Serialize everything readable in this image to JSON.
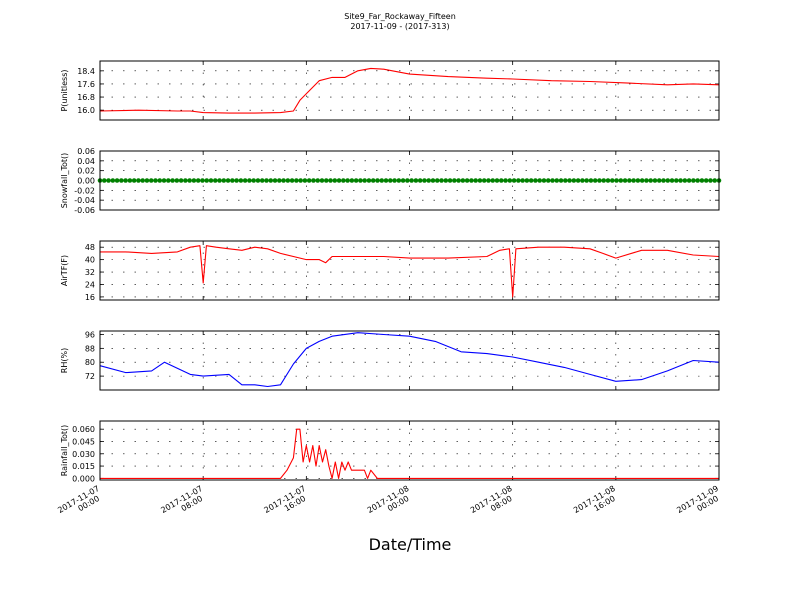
{
  "figure": {
    "title": "Site9_Far_Rockaway_Fifteen",
    "subtitle": "2017-11-09 - (2017-313)",
    "xlabel": "Date/Time",
    "x_ticks": [
      {
        "l1": "2017-11-07",
        "l2": "00:00"
      },
      {
        "l1": "2017-11-07",
        "l2": "08:00"
      },
      {
        "l1": "2017-11-07",
        "l2": "16:00"
      },
      {
        "l1": "2017-11-08",
        "l2": "00:00"
      },
      {
        "l1": "2017-11-08",
        "l2": "08:00"
      },
      {
        "l1": "2017-11-08",
        "l2": "16:00"
      },
      {
        "l1": "2017-11-09",
        "l2": "00:00"
      }
    ]
  },
  "chart_data": [
    {
      "type": "line",
      "ylabel": "P(unitless)",
      "color": "#ff0000",
      "ylim": [
        15.4,
        19.0
      ],
      "yticks": [
        "16.0",
        "16.8",
        "17.6",
        "18.4"
      ],
      "x": [
        "2017-11-07 00:00",
        "2017-11-07 03:00",
        "2017-11-07 06:00",
        "2017-11-07 07:00",
        "2017-11-07 08:00",
        "2017-11-07 10:00",
        "2017-11-07 12:00",
        "2017-11-07 14:00",
        "2017-11-07 15:00",
        "2017-11-07 15:30",
        "2017-11-07 16:00",
        "2017-11-07 17:00",
        "2017-11-07 18:00",
        "2017-11-07 19:00",
        "2017-11-07 20:00",
        "2017-11-07 21:00",
        "2017-11-07 22:00",
        "2017-11-08 00:00",
        "2017-11-08 03:00",
        "2017-11-08 06:00",
        "2017-11-08 08:00",
        "2017-11-08 11:00",
        "2017-11-08 14:00",
        "2017-11-08 17:00",
        "2017-11-08 20:00",
        "2017-11-08 22:00",
        "2017-11-09 00:00"
      ],
      "values": [
        15.95,
        16.0,
        15.95,
        15.95,
        15.85,
        15.82,
        15.82,
        15.85,
        15.95,
        16.6,
        17.0,
        17.8,
        18.0,
        18.0,
        18.4,
        18.55,
        18.5,
        18.2,
        18.05,
        17.95,
        17.9,
        17.8,
        17.75,
        17.65,
        17.55,
        17.6,
        17.55
      ]
    },
    {
      "type": "scatter",
      "ylabel": "Snowfall_Tot()",
      "color": "#008000",
      "ylim": [
        -0.06,
        0.06
      ],
      "yticks": [
        "0.06",
        "0.04",
        "0.02",
        "0.00",
        "-0.02",
        "-0.04",
        "-0.06"
      ],
      "x": [
        "2017-11-07 00:00",
        "2017-11-09 00:00"
      ],
      "values": [
        0.0,
        0.0
      ]
    },
    {
      "type": "line",
      "ylabel": "AirTF(F)",
      "color": "#ff0000",
      "ylim": [
        14,
        52
      ],
      "yticks": [
        "48",
        "40",
        "32",
        "24",
        "16"
      ],
      "x": [
        "2017-11-07 00:00",
        "2017-11-07 02:00",
        "2017-11-07 04:00",
        "2017-11-07 06:00",
        "2017-11-07 07:00",
        "2017-11-07 07:45",
        "2017-11-07 08:00",
        "2017-11-07 08:15",
        "2017-11-07 09:00",
        "2017-11-07 10:00",
        "2017-11-07 11:00",
        "2017-11-07 12:00",
        "2017-11-07 13:00",
        "2017-11-07 14:00",
        "2017-11-07 16:00",
        "2017-11-07 17:00",
        "2017-11-07 17:30",
        "2017-11-07 18:00",
        "2017-11-07 20:00",
        "2017-11-07 22:00",
        "2017-11-08 00:00",
        "2017-11-08 03:00",
        "2017-11-08 06:00",
        "2017-11-08 07:00",
        "2017-11-08 07:45",
        "2017-11-08 08:00",
        "2017-11-08 08:15",
        "2017-11-08 10:00",
        "2017-11-08 12:00",
        "2017-11-08 14:00",
        "2017-11-08 15:00",
        "2017-11-08 16:00",
        "2017-11-08 18:00",
        "2017-11-08 20:00",
        "2017-11-08 22:00",
        "2017-11-09 00:00"
      ],
      "values": [
        45,
        45,
        44,
        45,
        48,
        49,
        25,
        49,
        48,
        47,
        46,
        48,
        47,
        44,
        40,
        40,
        38,
        42,
        42,
        42,
        41,
        41,
        42,
        46,
        47,
        16,
        47,
        48,
        48,
        47,
        44,
        41,
        46,
        46,
        43,
        42
      ]
    },
    {
      "type": "line",
      "ylabel": "RH(%)",
      "color": "#0000ff",
      "ylim": [
        64,
        98
      ],
      "yticks": [
        "96",
        "88",
        "80",
        "72"
      ],
      "x": [
        "2017-11-07 00:00",
        "2017-11-07 02:00",
        "2017-11-07 04:00",
        "2017-11-07 05:00",
        "2017-11-07 07:00",
        "2017-11-07 08:00",
        "2017-11-07 10:00",
        "2017-11-07 11:00",
        "2017-11-07 12:00",
        "2017-11-07 13:00",
        "2017-11-07 14:00",
        "2017-11-07 15:00",
        "2017-11-07 16:00",
        "2017-11-07 17:00",
        "2017-11-07 18:00",
        "2017-11-07 20:00",
        "2017-11-07 22:00",
        "2017-11-08 00:00",
        "2017-11-08 02:00",
        "2017-11-08 04:00",
        "2017-11-08 06:00",
        "2017-11-08 08:00",
        "2017-11-08 10:00",
        "2017-11-08 12:00",
        "2017-11-08 14:00",
        "2017-11-08 16:00",
        "2017-11-08 18:00",
        "2017-11-08 20:00",
        "2017-11-08 22:00",
        "2017-11-09 00:00"
      ],
      "values": [
        78,
        74,
        75,
        80,
        73,
        72,
        73,
        67,
        67,
        66,
        67,
        79,
        88,
        92,
        95,
        97,
        96,
        95,
        92,
        86,
        85,
        83,
        80,
        77,
        73,
        69,
        70,
        75,
        81,
        80
      ]
    },
    {
      "type": "line",
      "ylabel": "Rainfall_Tot()",
      "color": "#ff0000",
      "ylim": [
        -0.002,
        0.07
      ],
      "yticks": [
        "0.060",
        "0.045",
        "0.030",
        "0.015",
        "0.000"
      ],
      "x": [
        "2017-11-07 00:00",
        "2017-11-07 14:00",
        "2017-11-07 14:30",
        "2017-11-07 15:00",
        "2017-11-07 15:15",
        "2017-11-07 15:30",
        "2017-11-07 15:45",
        "2017-11-07 16:00",
        "2017-11-07 16:15",
        "2017-11-07 16:30",
        "2017-11-07 16:45",
        "2017-11-07 17:00",
        "2017-11-07 17:15",
        "2017-11-07 17:30",
        "2017-11-07 17:45",
        "2017-11-07 18:00",
        "2017-11-07 18:15",
        "2017-11-07 18:30",
        "2017-11-07 18:45",
        "2017-11-07 19:00",
        "2017-11-07 19:15",
        "2017-11-07 19:30",
        "2017-11-07 20:00",
        "2017-11-07 20:30",
        "2017-11-07 20:45",
        "2017-11-07 21:00",
        "2017-11-07 21:30",
        "2017-11-09 00:00"
      ],
      "values": [
        0.0,
        0.0,
        0.01,
        0.025,
        0.06,
        0.06,
        0.02,
        0.04,
        0.02,
        0.04,
        0.015,
        0.04,
        0.02,
        0.035,
        0.015,
        0.0,
        0.02,
        0.0,
        0.02,
        0.01,
        0.02,
        0.01,
        0.01,
        0.01,
        0.0,
        0.01,
        0.0,
        0.0
      ]
    }
  ]
}
